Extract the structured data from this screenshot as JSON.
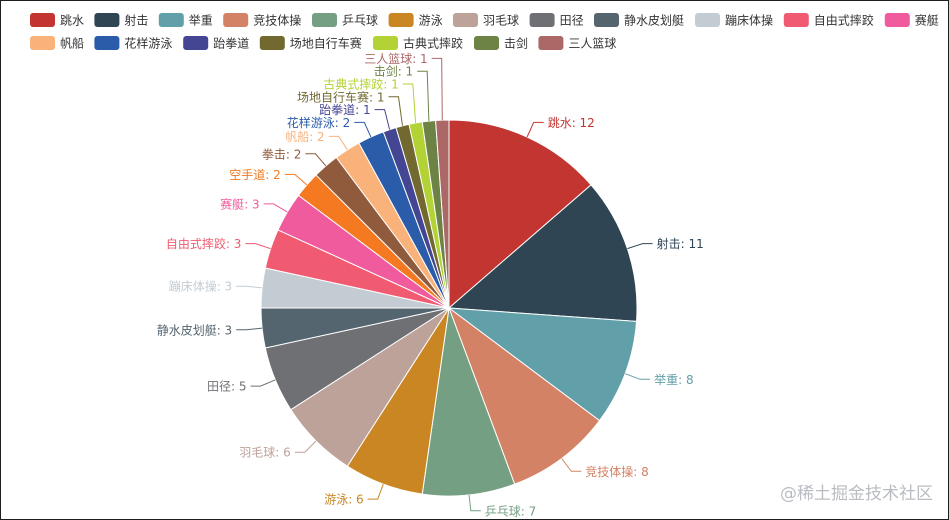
{
  "watermark": "@稀土掘金技术社区",
  "chart_data": {
    "type": "pie",
    "legend_position": "top",
    "series": [
      {
        "name": "跳水",
        "value": 12,
        "color": "#c23531"
      },
      {
        "name": "射击",
        "value": 11,
        "color": "#2f4554"
      },
      {
        "name": "举重",
        "value": 8,
        "color": "#61a0a8"
      },
      {
        "name": "竞技体操",
        "value": 8,
        "color": "#d48265"
      },
      {
        "name": "乒乓球",
        "value": 7,
        "color": "#749f83"
      },
      {
        "name": "游泳",
        "value": 6,
        "color": "#ca8622"
      },
      {
        "name": "羽毛球",
        "value": 6,
        "color": "#bda29a"
      },
      {
        "name": "田径",
        "value": 5,
        "color": "#6e7074"
      },
      {
        "name": "静水皮划艇",
        "value": 3,
        "color": "#546570"
      },
      {
        "name": "蹦床体操",
        "value": 3,
        "color": "#c4ccd3"
      },
      {
        "name": "自由式摔跤",
        "value": 3,
        "color": "#f05b72"
      },
      {
        "name": "赛艇",
        "value": 3,
        "color": "#ef5b9c"
      },
      {
        "name": "空手道",
        "value": 2,
        "color": "#f47920"
      },
      {
        "name": "拳击",
        "value": 2,
        "color": "#905a3d"
      },
      {
        "name": "帆船",
        "value": 2,
        "color": "#fab27b"
      },
      {
        "name": "花样游泳",
        "value": 2,
        "color": "#2a5caa"
      },
      {
        "name": "跆拳道",
        "value": 1,
        "color": "#444693"
      },
      {
        "name": "场地自行车赛",
        "value": 1,
        "color": "#726930"
      },
      {
        "name": "古典式摔跤",
        "value": 1,
        "color": "#b2d235"
      },
      {
        "name": "击剑",
        "value": 1,
        "color": "#6d8346"
      },
      {
        "name": "三人篮球",
        "value": 1,
        "color": "#ac6767"
      }
    ]
  }
}
